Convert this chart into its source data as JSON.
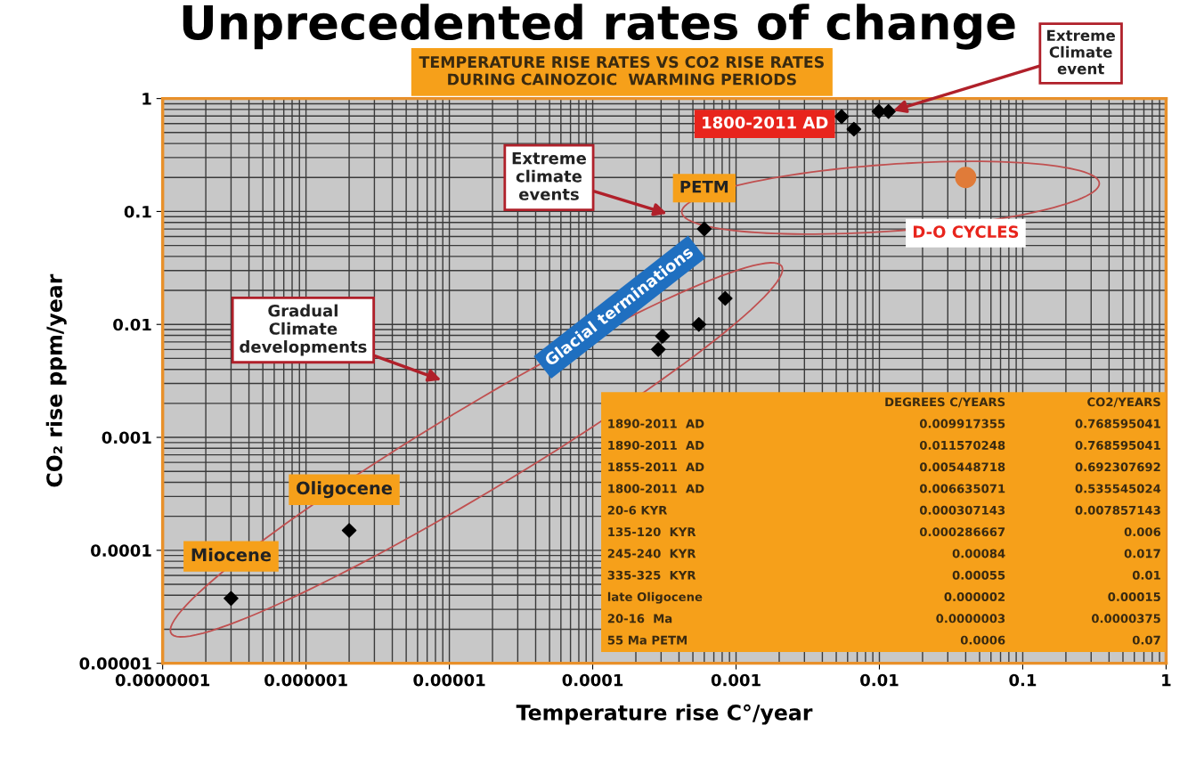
{
  "chart_data": {
    "type": "scatter",
    "title": "Unprecedented rates of change",
    "subtitle": "TEMPERATURE RISE RATES VS CO2 RISE RATES\nDURING CAINOZOIC  WARMING PERIODS",
    "xlabel": "Temperature rise C°/year",
    "ylabel": "CO₂ rise ppm/year",
    "series": [
      {
        "color": "#000000",
        "marker": "diamond",
        "x": [
          0.009917355,
          0.011570248,
          0.005448718,
          0.006635071,
          0.000307143,
          0.000286667,
          0.00084,
          0.00055,
          2e-06,
          3e-07,
          0.0006
        ],
        "values": [
          0.768595041,
          0.768595041,
          0.692307692,
          0.535545024,
          0.007857143,
          0.006,
          0.017,
          0.01,
          0.00015,
          3.75e-05,
          0.07
        ]
      },
      {
        "color": "#e07b39",
        "marker": "circle",
        "x": [
          0.04
        ],
        "values": [
          0.2
        ]
      }
    ],
    "log": "xy",
    "xlim": [
      1e-07,
      1
    ],
    "ylim": [
      1e-05,
      1
    ],
    "xticks": [
      {
        "value": 1e-07,
        "label": "0.0000001"
      },
      {
        "value": 1e-06,
        "label": "0.000001"
      },
      {
        "value": 1e-05,
        "label": "0.00001"
      },
      {
        "value": 0.0001,
        "label": "0.0001"
      },
      {
        "value": 0.001,
        "label": "0.001"
      },
      {
        "value": 0.01,
        "label": "0.01"
      },
      {
        "value": 0.1,
        "label": "0.1"
      },
      {
        "value": 1,
        "label": "1"
      }
    ],
    "yticks": [
      {
        "value": 1e-05,
        "label": "0.00001"
      },
      {
        "value": 0.0001,
        "label": "0.0001"
      },
      {
        "value": 0.001,
        "label": "0.001"
      },
      {
        "value": 0.01,
        "label": "0.01"
      },
      {
        "value": 0.1,
        "label": "0.1"
      },
      {
        "value": 1,
        "label": "1"
      }
    ],
    "grid": true,
    "legend": false,
    "annotations": [
      "1800-2011 AD",
      {
        "text": "Extreme\nClimate\nevent",
        "x": 0.012,
        "y": 0.77
      },
      "Extreme\nclimate\nevents",
      {
        "text": "PETM",
        "x": 0.0006,
        "y": 0.07
      },
      {
        "text": "D-O CYCLES",
        "x": 0.04,
        "y": 0.2
      },
      {
        "text": "Glacial terminations",
        "x": 0.00055,
        "y": 0.01
      },
      "Gradual\nClimate\ndevelopments",
      {
        "text": "Oligocene",
        "x": 2e-06,
        "y": 0.00015
      },
      {
        "text": "Miocene",
        "x": 3e-07,
        "y": 3.75e-05
      },
      "DEGREES C/YEARS",
      "CO2/YEARS",
      "1890-2011  AD",
      "0.009917355",
      "0.768595041",
      "1890-2011  AD",
      "0.011570248",
      "0.768595041",
      "1855-2011  AD",
      "0.005448718",
      "0.692307692",
      "1800-2011  AD",
      "0.006635071",
      "0.535545024",
      "20-6 KYR",
      "0.000307143",
      "0.007857143",
      "135-120  KYR",
      "0.000286667",
      "0.006",
      "245-240  KYR",
      "0.00084",
      "0.017",
      "335-325  KYR",
      "0.00055",
      "0.01",
      "late Oligocene",
      "0.000002",
      "0.00015",
      "20-16  Ma",
      "0.0000003",
      "0.0000375",
      "55 Ma PETM",
      "0.0006",
      "0.07"
    ]
  }
}
